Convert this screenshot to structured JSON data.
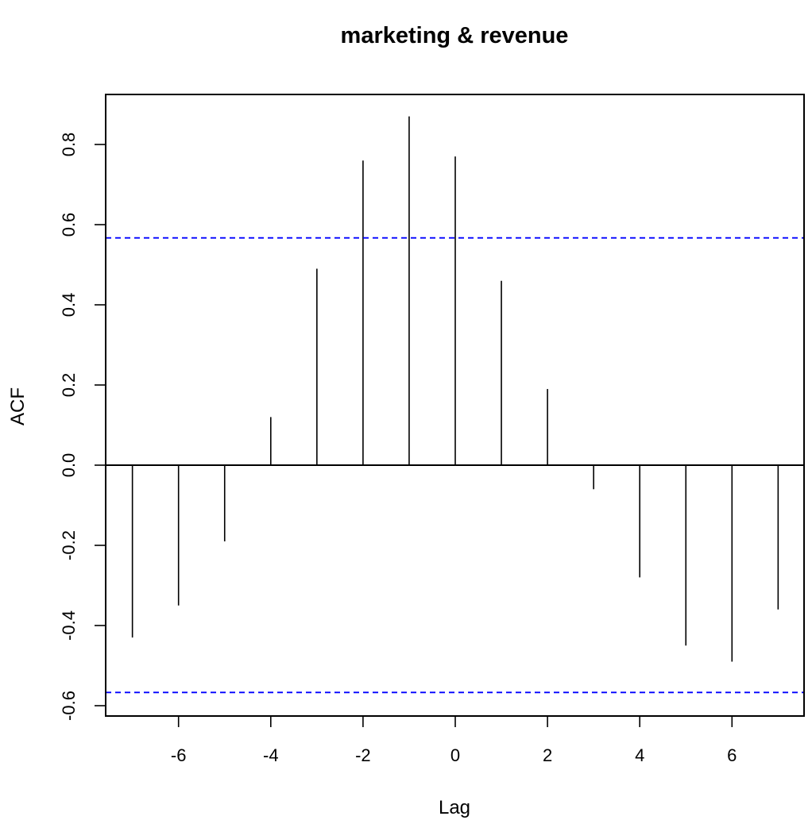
{
  "chart_data": {
    "type": "ccf",
    "title": "marketing & revenue",
    "xlabel": "Lag",
    "ylabel": "ACF",
    "xlim": [
      -7.5,
      7.5
    ],
    "ylim": [
      -0.62,
      0.93
    ],
    "x_ticks": [
      -6,
      -4,
      -2,
      0,
      2,
      4,
      6
    ],
    "x_tick_labels": [
      "-6",
      "-4",
      "-2",
      "0",
      "2",
      "4",
      "6"
    ],
    "y_ticks": [
      -0.6,
      -0.4,
      -0.2,
      0.0,
      0.2,
      0.4,
      0.6,
      0.8
    ],
    "y_tick_labels": [
      "-0.6",
      "-0.4",
      "-0.2",
      "0.0",
      "0.2",
      "0.4",
      "0.6",
      "0.8"
    ],
    "lags": [
      -7,
      -6,
      -5,
      -4,
      -3,
      -2,
      -1,
      0,
      1,
      2,
      3,
      4,
      5,
      6,
      7
    ],
    "values": [
      -0.43,
      -0.35,
      -0.19,
      0.12,
      0.49,
      0.76,
      0.87,
      0.77,
      0.46,
      0.19,
      -0.06,
      -0.28,
      -0.45,
      -0.49,
      -0.36
    ],
    "confidence_bounds": [
      0.567,
      -0.567
    ],
    "colors": {
      "bars": "#000000",
      "confidence": "#0000ff",
      "zero_line": "#000000"
    },
    "grid": false,
    "legend": "none"
  }
}
